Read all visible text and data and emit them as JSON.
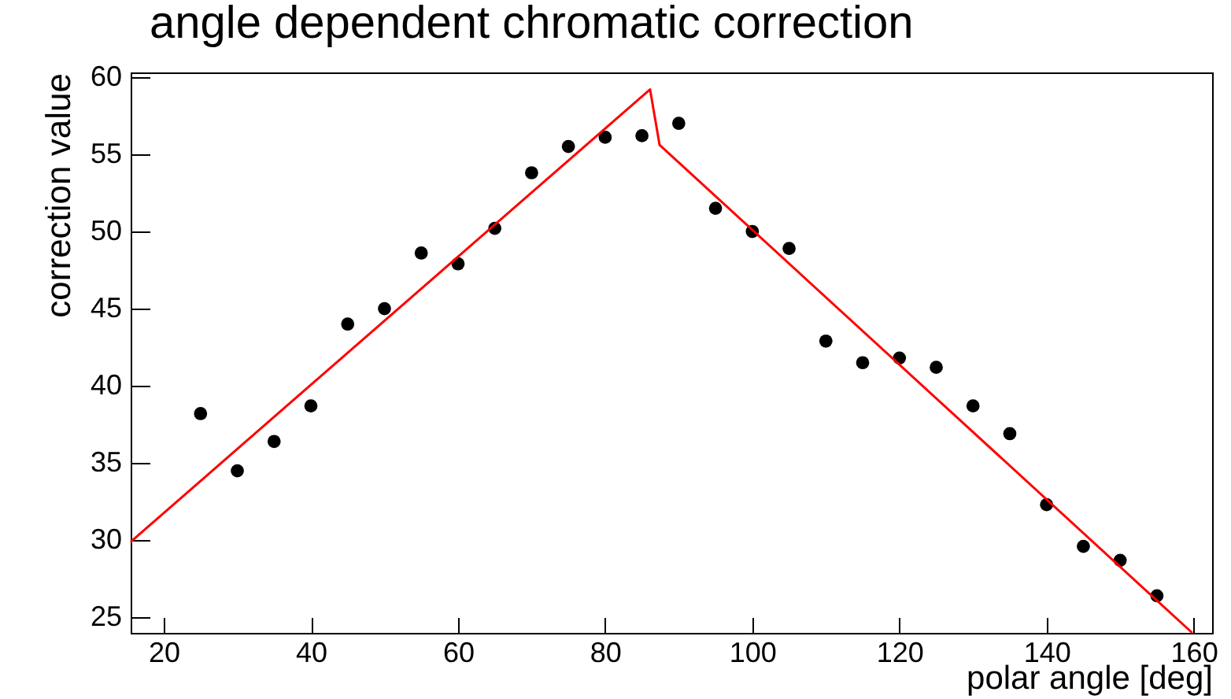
{
  "chart_data": {
    "type": "scatter",
    "title": "angle dependent chromatic correction",
    "xlabel": "polar angle [deg]",
    "ylabel": "correction value",
    "x": [
      25,
      30,
      35,
      40,
      45,
      50,
      55,
      60,
      65,
      70,
      75,
      80,
      85,
      90,
      95,
      100,
      105,
      110,
      115,
      120,
      125,
      130,
      135,
      140,
      145,
      150,
      155
    ],
    "series": [
      {
        "type": "scatter",
        "color": "#000000",
        "marker": "circle",
        "values": [
          38.2,
          34.5,
          36.4,
          38.7,
          44.0,
          45.0,
          48.6,
          47.9,
          50.2,
          53.8,
          55.5,
          56.1,
          56.2,
          57.0,
          51.5,
          50.0,
          48.9,
          42.9,
          41.5,
          41.8,
          41.2,
          38.7,
          36.9,
          32.3,
          29.6,
          28.7,
          26.4
        ]
      },
      {
        "type": "line",
        "color": "#ff0000",
        "marker": "none",
        "line_style": "solid",
        "x": [
          15.5,
          86.1,
          87.4,
          159.8
        ],
        "values": [
          29.9,
          59.2,
          55.6,
          24.0
        ]
      }
    ],
    "xlim": [
      15.5,
      162.5
    ],
    "ylim": [
      24,
      60.3
    ],
    "xticks": [
      20,
      40,
      60,
      80,
      100,
      120,
      140,
      160
    ],
    "yticks": [
      25,
      30,
      35,
      40,
      45,
      50,
      55,
      60
    ],
    "grid": false,
    "legend": false
  }
}
